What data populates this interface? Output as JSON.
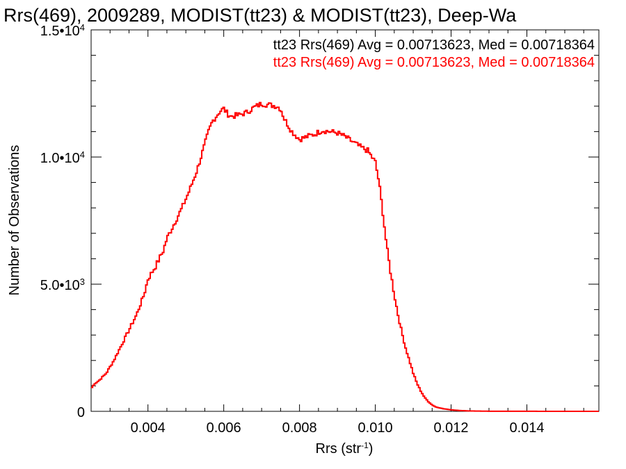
{
  "chart_data": {
    "type": "line",
    "title": "Rrs(469), 2009289, MODIST(tt23) & MODIST(tt23), Deep-Wa",
    "xlabel_main": "Rrs (str",
    "xlabel_sup": "-1",
    "xlabel_close": ")",
    "ylabel": "Number of Observations",
    "xlim": [
      0.0025,
      0.0159
    ],
    "ylim": [
      0,
      15000
    ],
    "x_ticks": [
      {
        "value": 0.004,
        "label": "0.004"
      },
      {
        "value": 0.006,
        "label": "0.006"
      },
      {
        "value": 0.008,
        "label": "0.008"
      },
      {
        "value": 0.01,
        "label": "0.010"
      },
      {
        "value": 0.012,
        "label": "0.012"
      },
      {
        "value": 0.014,
        "label": "0.014"
      }
    ],
    "y_ticks": [
      {
        "value": 0,
        "mantissa": "0",
        "exp": ""
      },
      {
        "value": 5000,
        "mantissa": "5.0•10",
        "exp": "3"
      },
      {
        "value": 10000,
        "mantissa": "1.0•10",
        "exp": "4"
      },
      {
        "value": 15000,
        "mantissa": "1.5•10",
        "exp": "4"
      }
    ],
    "legend": [
      {
        "text": "tt23 Rrs(469) Avg = 0.00713623, Med = 0.00718364",
        "color": "#000000"
      },
      {
        "text": "tt23 Rrs(469) Avg = 0.00713623, Med = 0.00718364",
        "color": "#ff0000"
      }
    ],
    "legend_placement": "top-right",
    "grid": false,
    "series": [
      {
        "color": "#ff0000",
        "anchors_x": [
          0.0025,
          0.0026,
          0.0027,
          0.0029,
          0.0031,
          0.0033,
          0.0035,
          0.0037,
          0.0039,
          0.004,
          0.0042,
          0.0044,
          0.0045,
          0.0047,
          0.0049,
          0.0051,
          0.0053,
          0.0054,
          0.0055,
          0.0056,
          0.0057,
          0.0058,
          0.0059,
          0.006,
          0.0061,
          0.0062,
          0.0064,
          0.0066,
          0.0068,
          0.007,
          0.0072,
          0.0074,
          0.0075,
          0.0076,
          0.0078,
          0.008,
          0.0082,
          0.0084,
          0.0086,
          0.0088,
          0.009,
          0.0092,
          0.0094,
          0.0096,
          0.0098,
          0.01,
          0.0101,
          0.0102,
          0.0103,
          0.0104,
          0.0105,
          0.0106,
          0.0107,
          0.0108,
          0.0109,
          0.011,
          0.0111,
          0.0112,
          0.0113,
          0.0114,
          0.0115,
          0.0116,
          0.0118,
          0.012,
          0.0122,
          0.0124,
          0.0126,
          0.0128,
          0.013,
          0.0135,
          0.014,
          0.015,
          0.0159
        ],
        "anchors_y": [
          900,
          1100,
          1200,
          1500,
          2000,
          2600,
          3200,
          3800,
          4600,
          5200,
          5700,
          6300,
          6800,
          7400,
          8000,
          8700,
          9500,
          10000,
          10500,
          11000,
          11400,
          11600,
          11800,
          11900,
          11700,
          11600,
          11650,
          11750,
          11950,
          12100,
          12050,
          12000,
          11900,
          11500,
          11000,
          10700,
          10800,
          10900,
          11050,
          11000,
          10950,
          10800,
          10600,
          10400,
          10250,
          9800,
          9000,
          7800,
          6500,
          5500,
          4600,
          3800,
          3100,
          2500,
          2000,
          1500,
          1100,
          800,
          550,
          380,
          250,
          170,
          100,
          60,
          35,
          20,
          12,
          8,
          5,
          3,
          2,
          1,
          0
        ],
        "bin_width": 4e-05
      }
    ]
  }
}
